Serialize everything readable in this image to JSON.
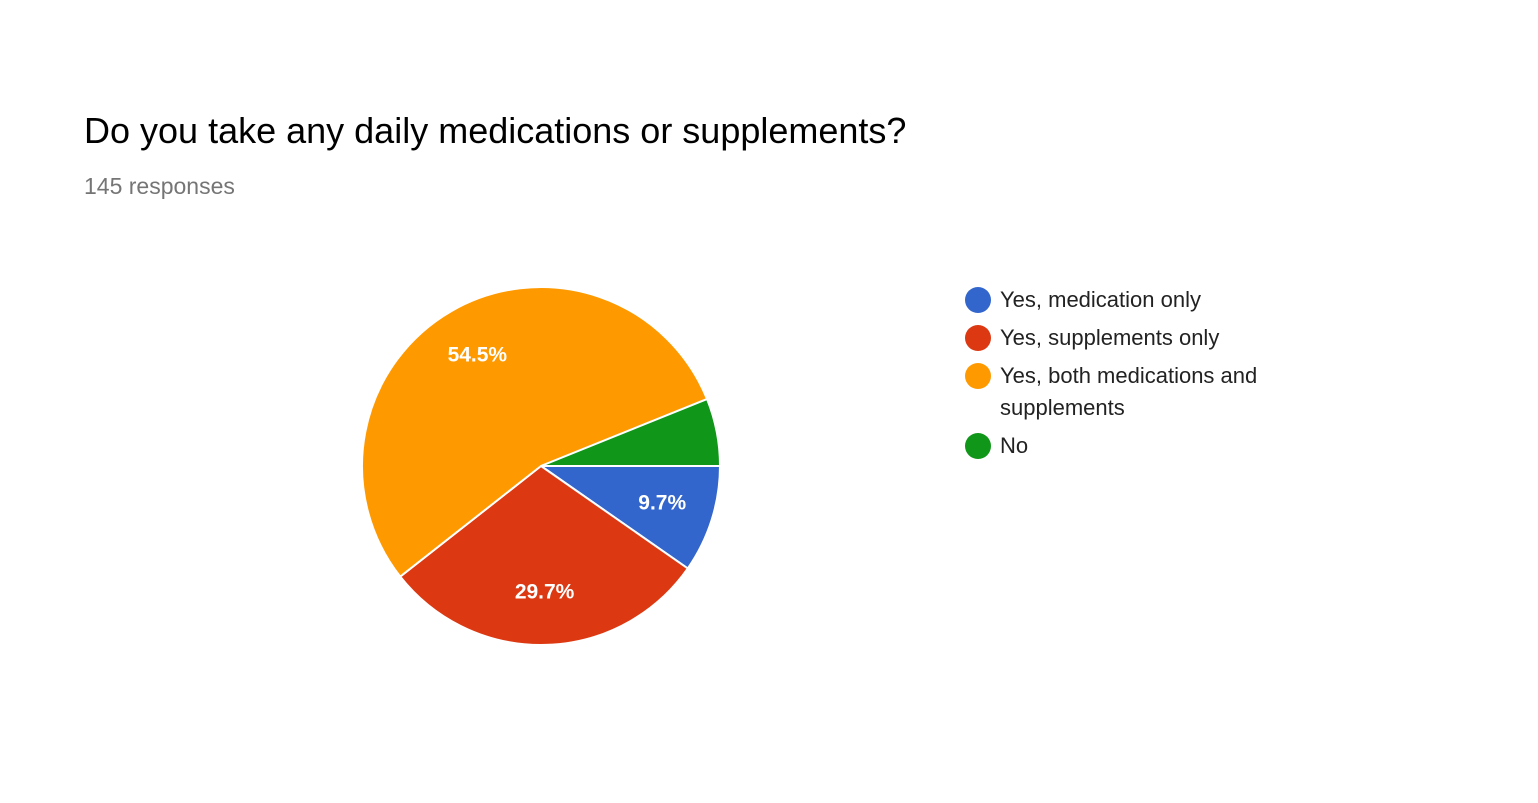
{
  "chart_data": {
    "type": "pie",
    "title": "Do you take any daily medications or supplements?",
    "subtitle": "145 responses",
    "categories": [
      "Yes, medication only",
      "Yes, supplements only",
      "Yes, both medications and supplements",
      "No"
    ],
    "values": [
      9.7,
      29.7,
      54.5,
      6.1
    ],
    "value_labels": [
      "9.7%",
      "29.7%",
      "54.5%",
      null
    ],
    "colors": [
      "#3366cc",
      "#dc3912",
      "#ff9900",
      "#109618"
    ],
    "legend": "right"
  }
}
